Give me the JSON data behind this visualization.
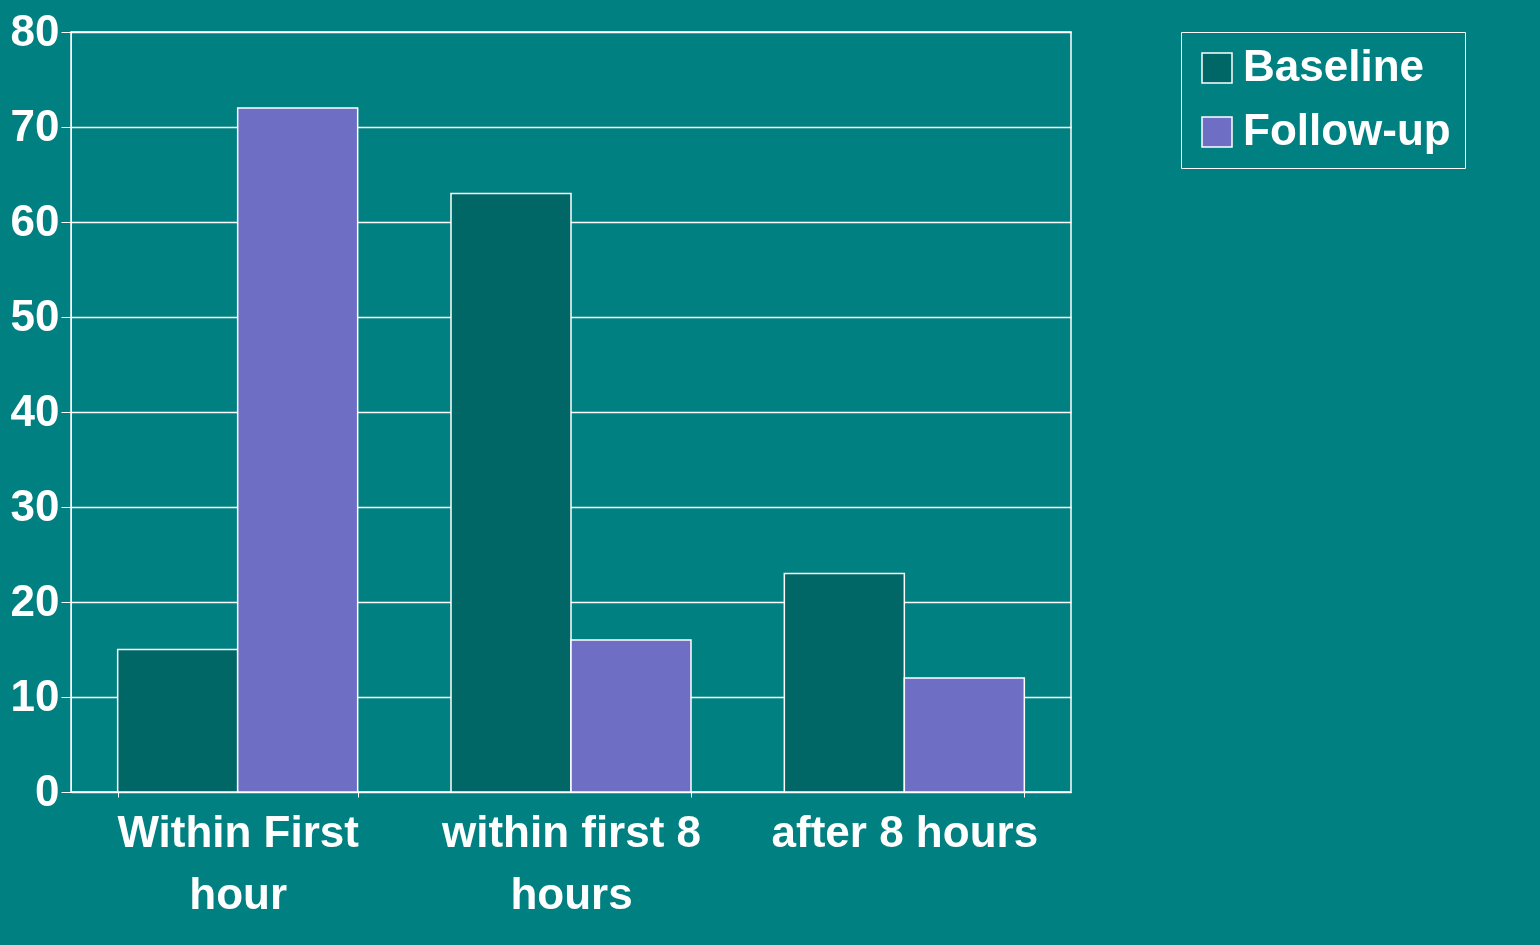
{
  "chart_data": {
    "type": "bar",
    "categories": [
      "Within First hour",
      "within first 8 hours",
      "after 8 hours"
    ],
    "series": [
      {
        "name": "Baseline",
        "color": "#006666",
        "values": [
          15,
          63,
          23
        ]
      },
      {
        "name": "Follow-up",
        "color": "#6e6ec4",
        "values": [
          72,
          16,
          12
        ]
      }
    ],
    "ylim": [
      0,
      80
    ],
    "yticks": [
      0,
      10,
      20,
      30,
      40,
      50,
      60,
      70,
      80
    ],
    "grid": "y",
    "legend": "right"
  }
}
